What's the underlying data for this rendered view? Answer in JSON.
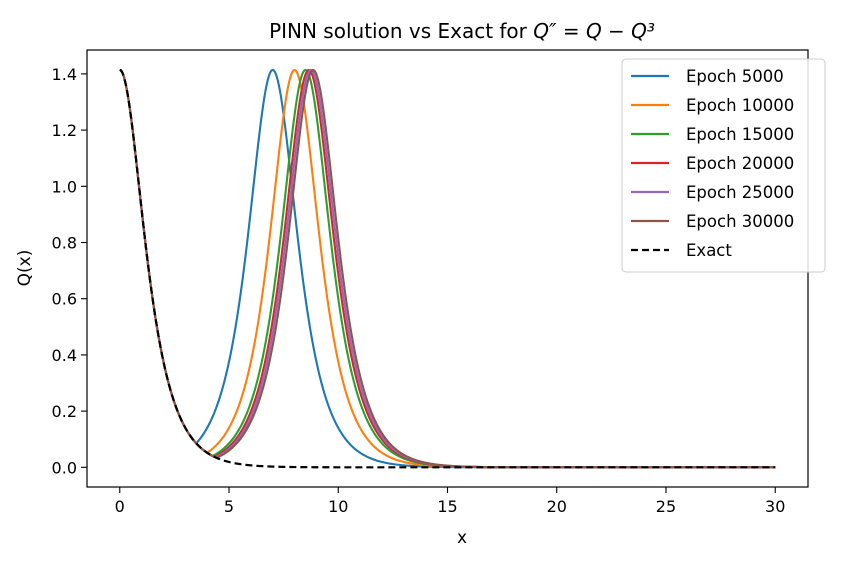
{
  "chart_data": {
    "type": "line",
    "title_main": "PINN solution vs Exact for ",
    "title_math": "Q″ = Q − Q³",
    "xlabel": "x",
    "ylabel": "Q(x)",
    "xlim": [
      -1.5,
      31.5
    ],
    "ylim": [
      -0.07,
      1.485
    ],
    "xticks": [
      0,
      5,
      10,
      15,
      20,
      25,
      30
    ],
    "yticks": [
      0.0,
      0.2,
      0.4,
      0.6,
      0.8,
      1.0,
      1.2,
      1.4
    ],
    "ytick_labels": [
      "0.0",
      "0.2",
      "0.4",
      "0.6",
      "0.8",
      "1.0",
      "1.2",
      "1.4"
    ],
    "legend_position": "top-right",
    "exact_formula": "sqrt(2) sech(x)",
    "series": [
      {
        "name": "Epoch 5000",
        "color": "#1f77b4",
        "peak_center": 7.0,
        "peak_amplitude": 1.414,
        "style": "solid"
      },
      {
        "name": "Epoch 10000",
        "color": "#ff7f0e",
        "peak_center": 8.0,
        "peak_amplitude": 1.414,
        "style": "solid"
      },
      {
        "name": "Epoch 15000",
        "color": "#2ca02c",
        "peak_center": 8.5,
        "peak_amplitude": 1.414,
        "style": "solid"
      },
      {
        "name": "Epoch 20000",
        "color": "#d62728",
        "peak_center": 8.65,
        "peak_amplitude": 1.414,
        "style": "solid"
      },
      {
        "name": "Epoch 25000",
        "color": "#9467bd",
        "peak_center": 8.75,
        "peak_amplitude": 1.414,
        "style": "solid"
      },
      {
        "name": "Epoch 30000",
        "color": "#8c564b",
        "peak_center": 8.85,
        "peak_amplitude": 1.414,
        "style": "solid"
      },
      {
        "name": "Exact",
        "color": "#000000",
        "peak_center": null,
        "peak_amplitude": null,
        "style": "dashed"
      }
    ]
  }
}
